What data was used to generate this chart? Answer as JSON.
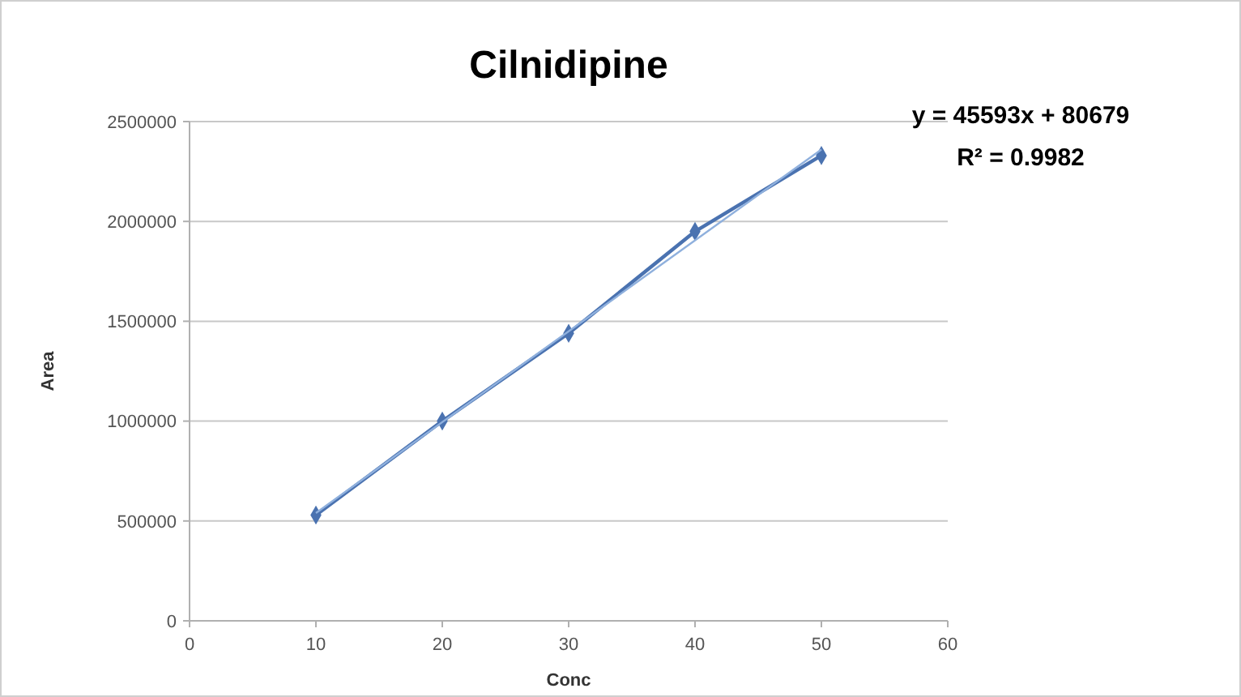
{
  "chart_data": {
    "type": "line",
    "title": "Cilnidipine",
    "xlabel": "Conc",
    "ylabel": "Area",
    "x": [
      10,
      20,
      30,
      40,
      50
    ],
    "series": [
      {
        "color": "#4a72b0",
        "values": [
          530000,
          1000000,
          1440000,
          1950000,
          2330000
        ],
        "marker": "diamond"
      },
      {
        "type": "line",
        "color": "#8fb0dd",
        "x": [
          10,
          50
        ],
        "values": [
          540000,
          2360000
        ],
        "marker": "none"
      }
    ],
    "annotations": [
      "y = 45593x + 80679",
      "R² = 0.9982"
    ],
    "xlim": [
      0,
      60
    ],
    "xticks": [
      0,
      10,
      20,
      30,
      40,
      50,
      60
    ],
    "ylim": [
      0,
      2500000
    ],
    "yticks": [
      0,
      500000,
      1000000,
      1500000,
      2000000,
      2500000
    ],
    "grid": "y"
  }
}
